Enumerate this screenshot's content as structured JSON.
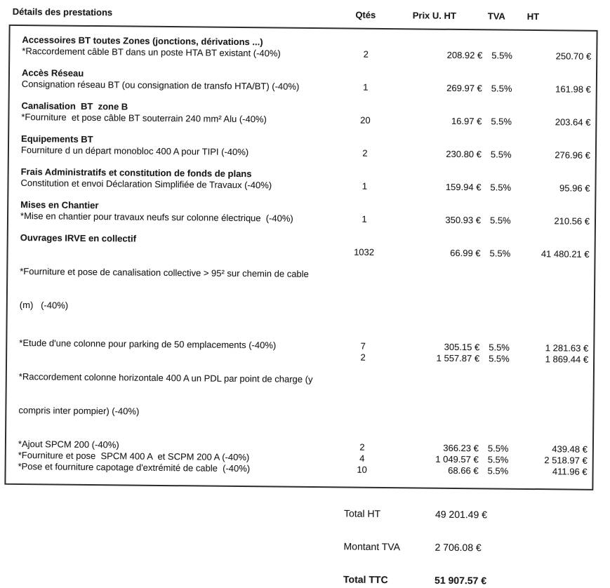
{
  "page": {
    "title": "Détails des prestations"
  },
  "columns": {
    "qty": "Qtés",
    "unit_price": "Prix U. HT",
    "vat": "TVA",
    "total": "HT"
  },
  "currency": "EUR",
  "sections": [
    {
      "heading": "Accessoires BT toutes Zones (jonctions, dérivations ...)",
      "items": [
        {
          "desc": "*Raccordement câble BT dans un poste HTA BT existant (-40%)",
          "qty": "2",
          "unit_price": "208.92 €",
          "vat": "5.5%",
          "total": "250.70 €"
        }
      ]
    },
    {
      "heading": "Accès Réseau",
      "items": [
        {
          "desc": "Consignation réseau BT (ou consignation de transfo HTA/BT) (-40%)",
          "qty": "1",
          "unit_price": "269.97 €",
          "vat": "5.5%",
          "total": "161.98 €"
        }
      ]
    },
    {
      "heading": "Canalisation  BT  zone B",
      "items": [
        {
          "desc": "*Fourniture  et pose câble BT souterrain 240 mm² Alu (-40%)",
          "qty": "20",
          "unit_price": "16.97 €",
          "vat": "5.5%",
          "total": "203.64 €"
        }
      ]
    },
    {
      "heading": "Equipements BT",
      "items": [
        {
          "desc": "Fourniture d un départ monobloc 400 A pour TIPI (-40%)",
          "qty": "2",
          "unit_price": "230.80 €",
          "vat": "5.5%",
          "total": "276.96 €"
        }
      ]
    },
    {
      "heading": "Frais Administratifs et constitution de fonds de plans",
      "items": [
        {
          "desc": "Constitution et envoi Déclaration Simplifiée de Travaux (-40%)",
          "qty": "1",
          "unit_price": "159.94 €",
          "vat": "5.5%",
          "total": "95.96 €"
        }
      ]
    },
    {
      "heading": "Mises en Chantier",
      "items": [
        {
          "desc": "*Mise en chantier pour travaux neufs sur colonne électrique  (-40%)",
          "qty": "1",
          "unit_price": "350.93 €",
          "vat": "5.5%",
          "total": "210.56 €"
        }
      ]
    },
    {
      "heading": "Ouvrages IRVE en collectif",
      "items": [
        {
          "desc": "*Fourniture et pose de canalisation collective > 95² sur chemin de cable",
          "desc2": "(m)   (-40%)",
          "qty": "1032",
          "unit_price": "66.99 €",
          "vat": "5.5%",
          "total": "41 480.21 €"
        },
        {
          "desc": "*Etude d'une colonne pour parking de 50 emplacements (-40%)",
          "qty": "7",
          "unit_price": "305.15 €",
          "vat": "5.5%",
          "total": "1 281.63 €"
        },
        {
          "desc": "*Raccordement colonne horizontale 400 A un PDL par point de charge (y",
          "desc2": "compris inter pompier) (-40%)",
          "qty": "2",
          "unit_price": "1 557.87 €",
          "vat": "5.5%",
          "total": "1 869.44 €"
        },
        {
          "desc": "*Ajout SPCM 200 (-40%)",
          "qty": "2",
          "unit_price": "366.23 €",
          "vat": "5.5%",
          "total": "439.48 €"
        },
        {
          "desc": "*Fourniture et pose  SPCM 400 A  et SCPM 200 A (-40%)",
          "qty": "4",
          "unit_price": "1 049.57 €",
          "vat": "5.5%",
          "total": "2 518.97 €"
        },
        {
          "desc": "*Pose et fourniture capotage d'extrémité de cable  (-40%)",
          "qty": "10",
          "unit_price": "68.66 €",
          "vat": "5.5%",
          "total": "411.96 €"
        }
      ]
    }
  ],
  "totals": [
    {
      "label": "Total HT",
      "value": "49 201.49 €"
    },
    {
      "label": "Montant TVA",
      "value": "2 706.08 €"
    },
    {
      "label": "Total TTC",
      "value": "51 907.57 €"
    }
  ]
}
